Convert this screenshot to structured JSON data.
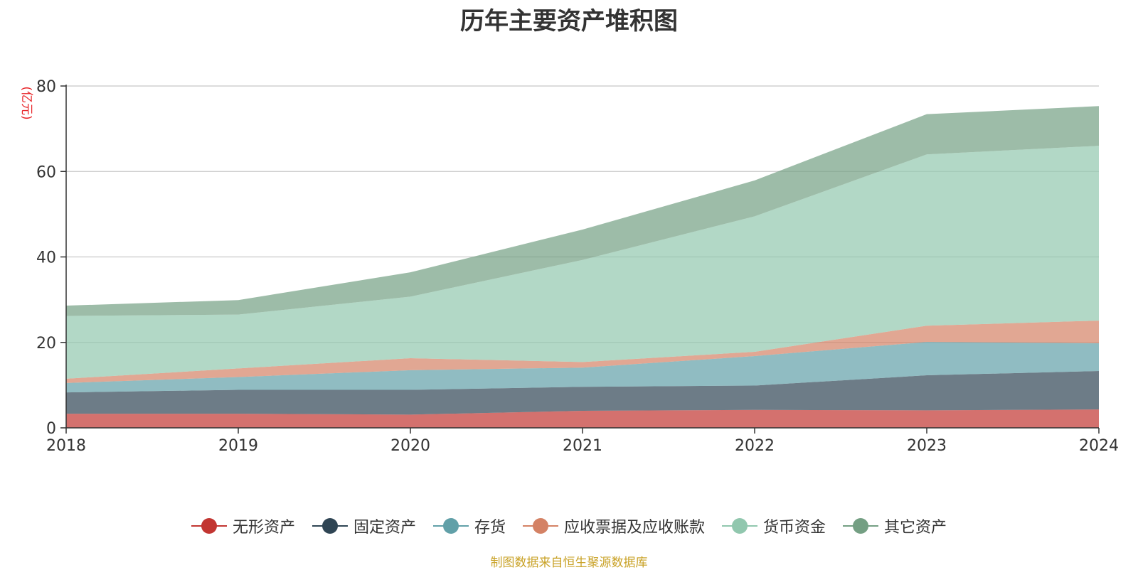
{
  "title": "历年主要资产堆积图",
  "source_note": "制图数据来自恒生聚源数据库",
  "chart_data": {
    "type": "area",
    "stacked": true,
    "ylabel": "(亿元)",
    "ylim": [
      0,
      80
    ],
    "yticks": [
      0,
      20,
      40,
      60,
      80
    ],
    "x": [
      "2018",
      "2019",
      "2020",
      "2021",
      "2022",
      "2023",
      "2024"
    ],
    "grid": true,
    "legend_position": "bottom",
    "series": [
      {
        "name": "无形资产",
        "color": "#c23531",
        "values": [
          3.3,
          3.3,
          3.1,
          4.0,
          4.2,
          4.1,
          4.3
        ]
      },
      {
        "name": "固定资产",
        "color": "#2f4554",
        "values": [
          5.0,
          5.6,
          5.8,
          5.6,
          5.7,
          8.2,
          9.0
        ]
      },
      {
        "name": "存货",
        "color": "#61a0a8",
        "values": [
          2.2,
          3.0,
          4.6,
          4.5,
          6.9,
          7.8,
          6.5
        ]
      },
      {
        "name": "应收票据及应收账款",
        "color": "#d48265",
        "values": [
          1.0,
          2.0,
          2.8,
          1.3,
          1.0,
          3.8,
          5.3
        ]
      },
      {
        "name": "货币资金",
        "color": "#91c7ae",
        "values": [
          14.7,
          12.6,
          14.4,
          23.9,
          31.7,
          40.1,
          40.9
        ]
      },
      {
        "name": "其它资产",
        "color": "#749f83",
        "values": [
          2.4,
          3.4,
          5.7,
          7.1,
          8.4,
          9.4,
          9.3
        ]
      }
    ]
  }
}
